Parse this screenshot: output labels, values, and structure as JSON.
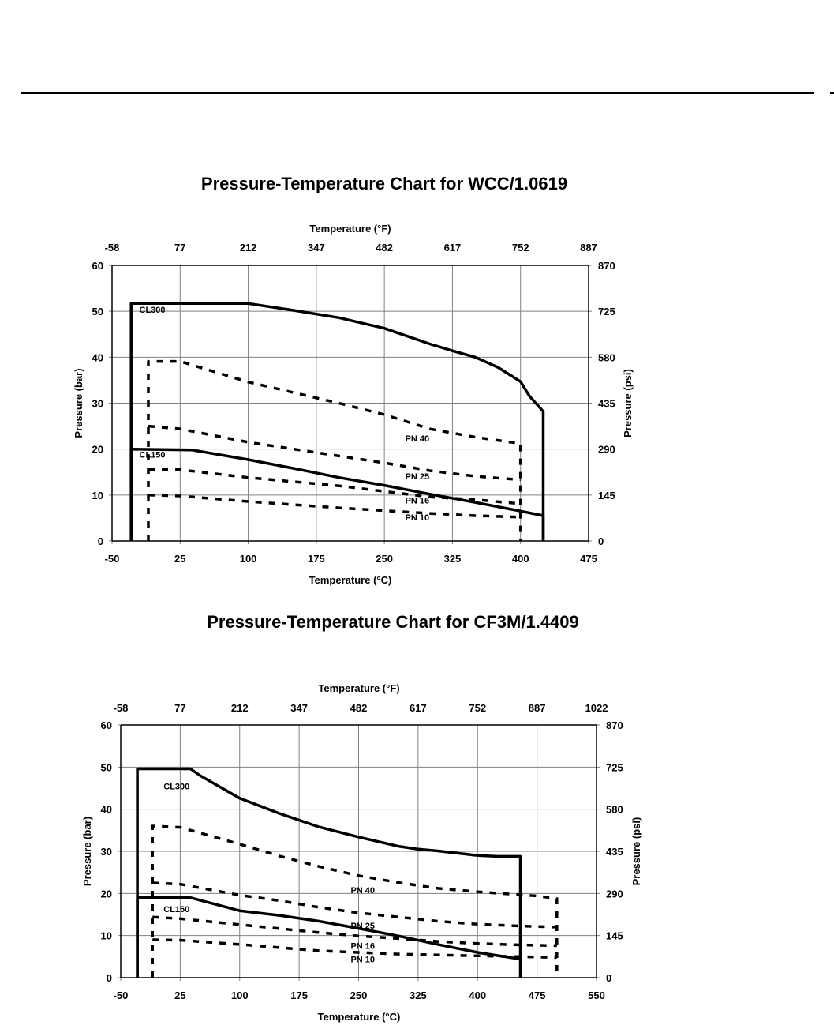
{
  "chart_data": [
    {
      "type": "line",
      "title": "Pressure-Temperature Chart for WCC/1.0619",
      "xlabel": "Temperature (°C)",
      "x2label": "Temperature (°F)",
      "ylabel": "Pressure (bar)",
      "y2label": "Pressure (psi)",
      "xlim": [
        -50,
        475
      ],
      "ylim": [
        0,
        60
      ],
      "grid": true,
      "x_ticks": [
        "-50",
        "25",
        "100",
        "175",
        "250",
        "325",
        "400",
        "475"
      ],
      "x2_ticks": [
        "-58",
        "77",
        "212",
        "347",
        "482",
        "617",
        "752",
        "887"
      ],
      "y_ticks": [
        "0",
        "10",
        "20",
        "30",
        "40",
        "50",
        "60"
      ],
      "y2_ticks": [
        "0",
        "145",
        "290",
        "435",
        "580",
        "725",
        "870"
      ],
      "series": [
        {
          "name": "CL300",
          "style": "solid",
          "x": [
            -29,
            -29,
            100,
            150,
            200,
            250,
            300,
            325,
            350,
            375,
            400,
            410,
            425,
            425
          ],
          "y": [
            0,
            51.7,
            51.7,
            50.2,
            48.6,
            46.3,
            42.9,
            41.4,
            40.0,
            37.8,
            34.7,
            31.5,
            28.2,
            0
          ]
        },
        {
          "name": "CL150",
          "style": "solid",
          "x": [
            -29,
            -29,
            38,
            100,
            150,
            200,
            250,
            300,
            350,
            400,
            425,
            425
          ],
          "y": [
            0,
            20.0,
            19.8,
            17.7,
            15.8,
            13.8,
            12.1,
            10.2,
            8.4,
            6.5,
            5.5,
            0
          ]
        },
        {
          "name": "PN 40",
          "style": "dashed",
          "x": [
            -10,
            -10,
            25,
            100,
            200,
            250,
            300,
            350,
            400,
            400
          ],
          "y": [
            0,
            39.1,
            39.1,
            34.6,
            30.0,
            27.5,
            24.4,
            22.6,
            21.2,
            0
          ]
        },
        {
          "name": "PN 25",
          "style": "dashed",
          "x": [
            -10,
            25,
            100,
            200,
            250,
            300,
            350,
            400
          ],
          "y": [
            25.0,
            24.4,
            21.5,
            18.5,
            17.0,
            15.3,
            14.1,
            13.3
          ]
        },
        {
          "name": "PN 16",
          "style": "dashed",
          "x": [
            -10,
            25,
            100,
            200,
            250,
            300,
            350,
            400
          ],
          "y": [
            15.6,
            15.5,
            13.8,
            12.0,
            10.8,
            9.6,
            9.0,
            8.1
          ]
        },
        {
          "name": "PN 10",
          "style": "dashed",
          "x": [
            -10,
            25,
            100,
            200,
            250,
            300,
            350,
            400
          ],
          "y": [
            10.0,
            9.8,
            8.6,
            7.2,
            6.6,
            6.0,
            5.5,
            5.2
          ]
        }
      ],
      "annotations": [
        {
          "text": "CL300",
          "x": -20,
          "y": 49.7
        },
        {
          "text": "CL150",
          "x": -20,
          "y": 18.1
        },
        {
          "text": "PN 40",
          "x": 273,
          "y": 21.7
        },
        {
          "text": "PN 25",
          "x": 273,
          "y": 13.4
        },
        {
          "text": "PN 16",
          "x": 273,
          "y": 8.2
        },
        {
          "text": "PN 10",
          "x": 273,
          "y": 4.5
        }
      ]
    },
    {
      "type": "line",
      "title": "Pressure-Temperature Chart for CF3M/1.4409",
      "xlabel": "Temperature (°C)",
      "x2label": "Temperature (°F)",
      "ylabel": "Pressure (bar)",
      "y2label": "Pressure (psi)",
      "xlim": [
        -50,
        550
      ],
      "ylim": [
        0,
        60
      ],
      "grid": true,
      "x_ticks": [
        "-50",
        "25",
        "100",
        "175",
        "250",
        "325",
        "400",
        "475",
        "550"
      ],
      "x2_ticks": [
        "-58",
        "77",
        "212",
        "347",
        "482",
        "617",
        "752",
        "887",
        "1022"
      ],
      "y_ticks": [
        "0",
        "10",
        "20",
        "30",
        "40",
        "50",
        "60"
      ],
      "y2_ticks": [
        "0",
        "145",
        "290",
        "435",
        "580",
        "725",
        "870"
      ],
      "series": [
        {
          "name": "CL300",
          "style": "solid",
          "x": [
            -29,
            -29,
            38,
            50,
            100,
            150,
            200,
            250,
            300,
            325,
            350,
            400,
            425,
            454,
            454
          ],
          "y": [
            0,
            49.6,
            49.6,
            48.0,
            42.6,
            39.0,
            35.8,
            33.4,
            31.2,
            30.5,
            30.1,
            29.0,
            28.8,
            28.8,
            0
          ]
        },
        {
          "name": "CL150",
          "style": "solid",
          "x": [
            -29,
            -29,
            38,
            100,
            150,
            200,
            250,
            300,
            350,
            400,
            454
          ],
          "y": [
            0,
            19.0,
            19.0,
            15.9,
            14.8,
            13.4,
            11.7,
            9.9,
            7.9,
            6.0,
            4.4
          ]
        },
        {
          "name": "PN 40",
          "style": "dashed",
          "x": [
            -10,
            -10,
            25,
            100,
            150,
            200,
            250,
            300,
            350,
            400,
            475,
            500,
            500
          ],
          "y": [
            0,
            36.0,
            35.7,
            31.7,
            28.9,
            26.4,
            24.2,
            22.6,
            21.2,
            20.4,
            19.4,
            18.8,
            0
          ]
        },
        {
          "name": "PN 25",
          "style": "dashed",
          "x": [
            -10,
            25,
            100,
            150,
            200,
            250,
            300,
            350,
            400,
            450,
            500
          ],
          "y": [
            22.5,
            22.2,
            19.6,
            18.3,
            16.7,
            15.4,
            14.4,
            13.4,
            12.7,
            12.3,
            12.0
          ]
        },
        {
          "name": "PN 16",
          "style": "dashed",
          "x": [
            -10,
            25,
            100,
            200,
            250,
            300,
            350,
            400,
            450,
            500
          ],
          "y": [
            14.4,
            14.0,
            12.6,
            10.7,
            9.9,
            9.3,
            8.6,
            8.1,
            7.8,
            7.6
          ]
        },
        {
          "name": "PN 10",
          "style": "dashed",
          "x": [
            -10,
            25,
            100,
            200,
            250,
            300,
            350,
            400,
            450,
            500
          ],
          "y": [
            9.0,
            8.9,
            7.9,
            6.4,
            6.0,
            5.6,
            5.4,
            5.2,
            5.0,
            4.8
          ]
        }
      ],
      "annotations": [
        {
          "text": "CL300",
          "x": 4,
          "y": 44.7
        },
        {
          "text": "CL150",
          "x": 4,
          "y": 15.6
        },
        {
          "text": "PN 40",
          "x": 240,
          "y": 20.1
        },
        {
          "text": "PN 25",
          "x": 240,
          "y": 11.6
        },
        {
          "text": "PN 16",
          "x": 240,
          "y": 6.8
        },
        {
          "text": "PN 10",
          "x": 240,
          "y": 3.7
        }
      ]
    }
  ]
}
